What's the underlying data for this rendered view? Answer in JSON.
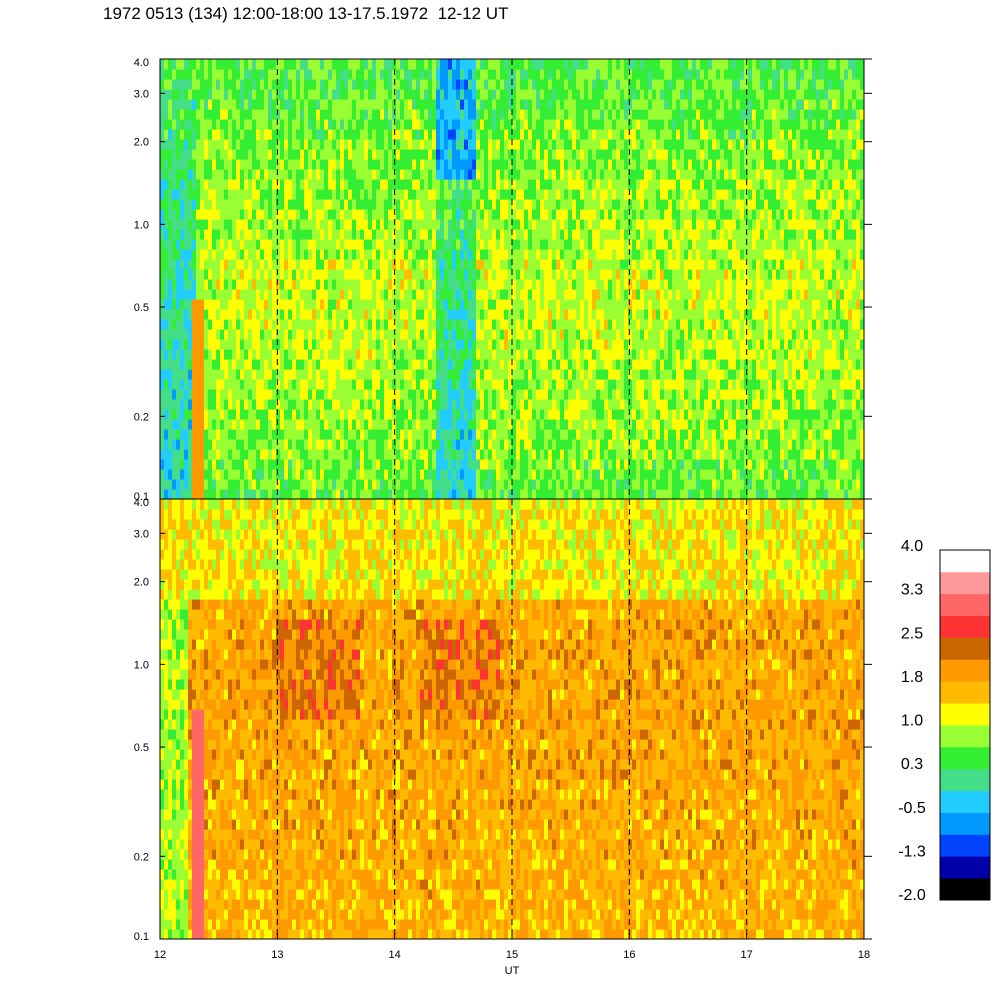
{
  "title": "1972 0513 (134) 12:00-18:00 13-17.5.1972  12-12 UT",
  "chart_data": [
    {
      "type": "heatmap",
      "panel": "upper",
      "x_range": [
        12,
        18
      ],
      "x_ticks": [
        "12",
        "13",
        "14",
        "15",
        "16",
        "17",
        "18"
      ],
      "y_scale": "log",
      "y_range": [
        0.1,
        4.0
      ],
      "y_ticks": [
        "0.1",
        "0.2",
        "0.5",
        "1.0",
        "2.0",
        "3.0",
        "4.0"
      ],
      "vertical_dashed_lines_at": [
        13,
        14,
        15,
        16,
        17
      ],
      "dominant_levels": {
        "low_freq": "green",
        "mid_freq": "yellow-green",
        "high_freq": "green/cyan"
      },
      "notable_features": [
        {
          "x_range": [
            12.0,
            12.3
          ],
          "description": "blue/cyan band"
        },
        {
          "x_range": [
            12.28,
            12.38
          ],
          "y_range": [
            0.1,
            0.5
          ],
          "description": "orange streak"
        },
        {
          "x_range": [
            14.35,
            14.7
          ],
          "description": "cyan/blue band"
        }
      ]
    },
    {
      "type": "heatmap",
      "panel": "lower",
      "x_range": [
        12,
        18
      ],
      "x_ticks": [
        "12",
        "13",
        "14",
        "15",
        "16",
        "17",
        "18"
      ],
      "xlabel": "UT",
      "y_scale": "log",
      "y_range": [
        0.1,
        4.0
      ],
      "y_ticks": [
        "0.1",
        "0.2",
        "0.5",
        "1.0",
        "2.0",
        "3.0",
        "4.0"
      ],
      "vertical_dashed_lines_at": [
        13,
        14,
        15,
        16,
        17
      ],
      "dominant_levels": {
        "overall": "orange/yellow"
      },
      "notable_features": [
        {
          "x_range": [
            12.28,
            12.38
          ],
          "y_range": [
            0.1,
            0.7
          ],
          "description": "red/pink streak"
        },
        {
          "x_range": [
            13.0,
            13.7
          ],
          "y_range": [
            0.6,
            1.2
          ],
          "description": "dark orange patch"
        },
        {
          "x_range": [
            14.2,
            14.9
          ],
          "y_range": [
            0.6,
            1.2
          ],
          "description": "dark orange patch"
        }
      ]
    }
  ],
  "colorbar": {
    "colors": [
      "#000000",
      "#0000aa",
      "#0044ff",
      "#0099ff",
      "#22ccff",
      "#44dd88",
      "#33ee33",
      "#99ff33",
      "#ffff00",
      "#ffbb00",
      "#ff9900",
      "#cc6600",
      "#ff3333",
      "#ff6666",
      "#ff9999",
      "#ffffff"
    ],
    "labels": [
      "-2.0",
      "-1.3",
      "-0.5",
      "0.3",
      "1.0",
      "1.8",
      "2.5",
      "3.3",
      "4.0"
    ]
  }
}
